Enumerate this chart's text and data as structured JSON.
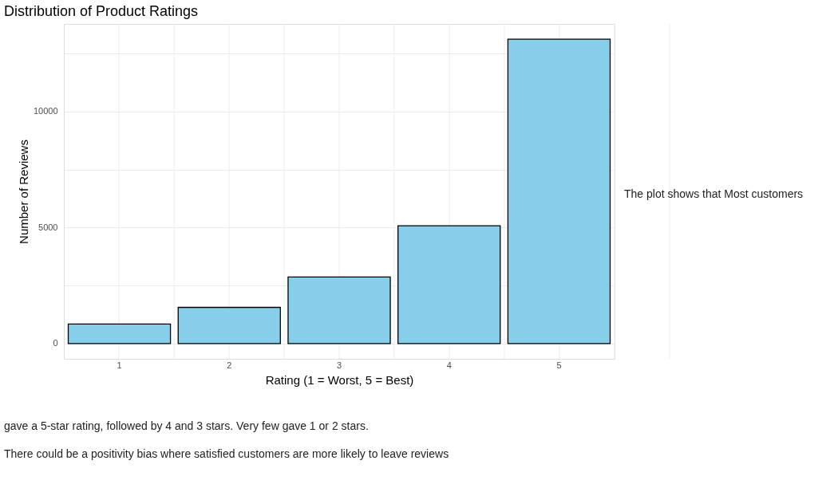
{
  "chart_data": {
    "type": "bar",
    "title": "Distribution of Product Ratings",
    "xlabel": "Rating (1 = Worst, 5 = Best)",
    "ylabel": "Number of Reviews",
    "categories": [
      "1",
      "2",
      "3",
      "4",
      "5"
    ],
    "values": [
      840,
      1560,
      2870,
      5080,
      13120
    ],
    "color": "#87ceeb",
    "ylim": [
      -656,
      13776
    ],
    "yticks": [
      0,
      {
        "value": 2500,
        "label": null
      },
      5000,
      {
        "value": 7500,
        "label": null
      },
      10000,
      {
        "value": 12500,
        "label": null
      }
    ],
    "grid": true,
    "annotations": [
      "The plot shows that Most customers",
      "gave a 5-star rating, followed by 4 and 3 stars. Very few gave 1 or 2 stars.",
      "There could be a positivity bias where satisfied customers are more likely to leave reviews"
    ]
  }
}
